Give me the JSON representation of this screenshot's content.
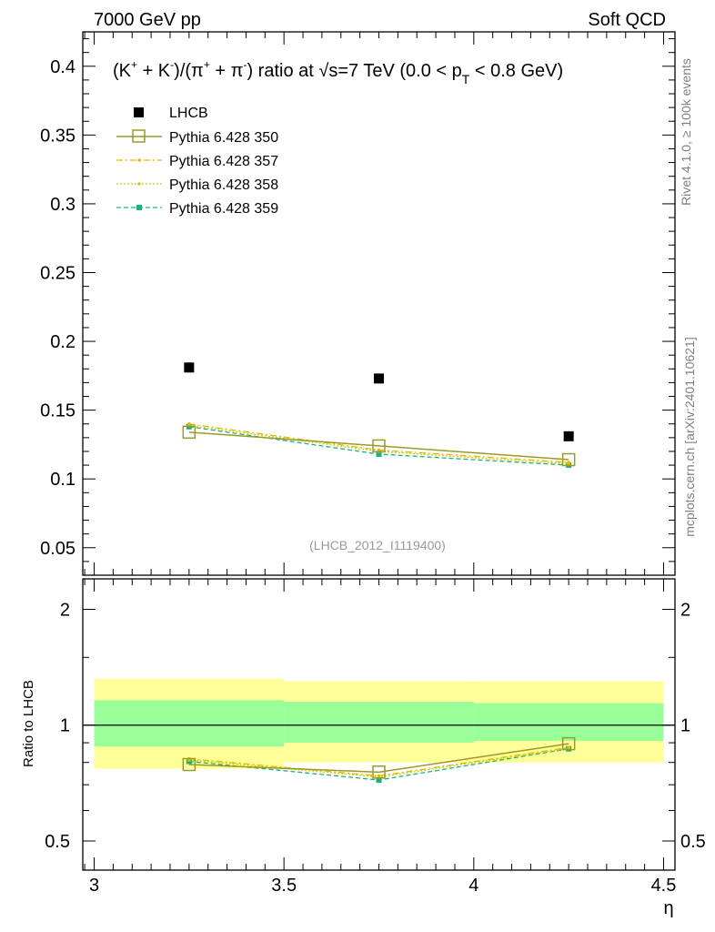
{
  "header": {
    "left": "7000 GeV pp",
    "right": "Soft QCD"
  },
  "side": {
    "rivet": "Rivet 4.1.0, ≥ 100k events",
    "site": "mcplots.cern.ch [arXiv:2401.10621]"
  },
  "chart_data": {
    "type": "scatter",
    "title": "(K⁺ + K⁻)/(π⁺ + π⁻) ratio at √s=7 TeV (0.0 < p_T < 0.8 GeV)",
    "xlabel": "η",
    "ylabel": "",
    "ratio_ylabel": "Ratio to LHCB",
    "analysis_id": "(LHCB_2012_I1119400)",
    "x_ticks": [
      "3",
      "3.5",
      "4",
      "4.5"
    ],
    "y_ticks": [
      "0.05",
      "0.1",
      "0.15",
      "0.2",
      "0.25",
      "0.3",
      "0.35",
      "0.4"
    ],
    "ratio_ticks": [
      "0.5",
      "1",
      "2"
    ],
    "xlim": [
      2.97,
      4.53
    ],
    "ylim": [
      0.03,
      0.425
    ],
    "ratio_ylim": [
      0.42,
      2.4
    ],
    "bins": [
      [
        3.0,
        3.5
      ],
      [
        3.5,
        4.0
      ],
      [
        4.0,
        4.5
      ]
    ],
    "x": [
      3.25,
      3.75,
      4.25
    ],
    "data": {
      "name": "LHCB",
      "values": [
        0.181,
        0.173,
        0.131
      ]
    },
    "band_inner": [
      [
        0.88,
        1.16
      ],
      [
        0.9,
        1.15
      ],
      [
        0.91,
        1.14
      ]
    ],
    "band_outer": [
      [
        0.77,
        1.32
      ],
      [
        0.8,
        1.3
      ],
      [
        0.8,
        1.3
      ]
    ],
    "series": [
      {
        "name": "Pythia 6.428 350",
        "color": "#9a9a2a",
        "marker": "open-square",
        "values": [
          0.134,
          0.124,
          0.114
        ],
        "ratio": [
          0.79,
          0.755,
          0.895
        ]
      },
      {
        "name": "Pythia 6.428 357",
        "color": "#e6b800",
        "marker": "small-dot",
        "values": [
          0.14,
          0.121,
          0.112
        ],
        "ratio": [
          0.818,
          0.738,
          0.875
        ]
      },
      {
        "name": "Pythia 6.428 358",
        "color": "#d4c800",
        "marker": "small-dot",
        "values": [
          0.139,
          0.12,
          0.111
        ],
        "ratio": [
          0.812,
          0.733,
          0.87
        ]
      },
      {
        "name": "Pythia 6.428 359",
        "color": "#1ab380",
        "marker": "filled-square",
        "values": [
          0.138,
          0.118,
          0.11
        ],
        "ratio": [
          0.805,
          0.72,
          0.868
        ]
      }
    ]
  }
}
